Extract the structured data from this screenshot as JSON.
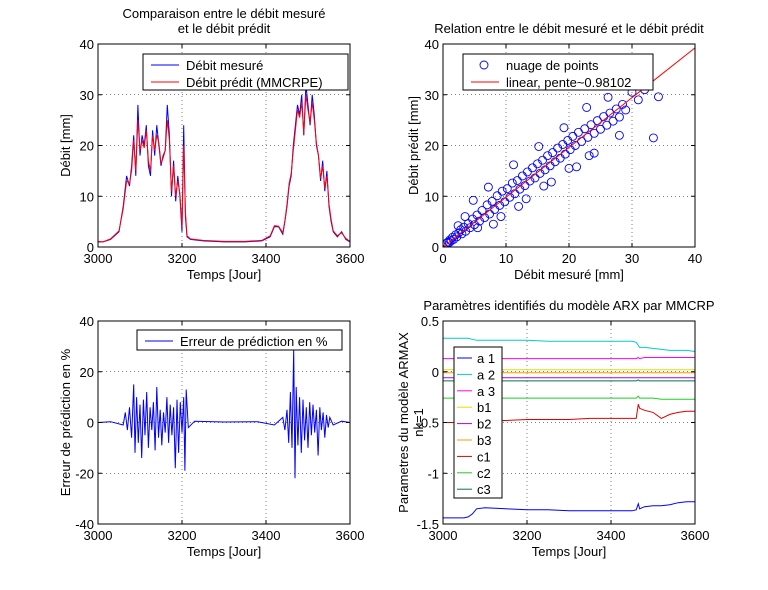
{
  "chart_data": [
    {
      "id": "comparison",
      "type": "line",
      "title": [
        "Comparaison entre le débit mesuré",
        "et le débit prédit"
      ],
      "xlabel": "Temps      [Jour]",
      "ylabel": "Débit [mm]",
      "xlim": [
        3000,
        3600
      ],
      "ylim": [
        0,
        40
      ],
      "xticks": [
        3000,
        3200,
        3400,
        3600
      ],
      "yticks": [
        0,
        10,
        20,
        30,
        40
      ],
      "legend": "top-right",
      "series": [
        {
          "name": "Débit mesuré",
          "color": "#0000ff",
          "x": [
            3000,
            3012,
            3030,
            3050,
            3060,
            3068,
            3075,
            3080,
            3085,
            3090,
            3095,
            3100,
            3105,
            3110,
            3115,
            3120,
            3125,
            3130,
            3135,
            3140,
            3145,
            3150,
            3155,
            3160,
            3165,
            3170,
            3175,
            3180,
            3185,
            3190,
            3195,
            3200,
            3204,
            3208,
            3212,
            3220,
            3250,
            3300,
            3350,
            3390,
            3410,
            3420,
            3430,
            3440,
            3445,
            3450,
            3455,
            3460,
            3465,
            3470,
            3475,
            3480,
            3485,
            3490,
            3495,
            3500,
            3505,
            3510,
            3515,
            3520,
            3525,
            3530,
            3535,
            3540,
            3545,
            3550,
            3555,
            3560,
            3570,
            3580,
            3590,
            3600
          ],
          "values": [
            1,
            1,
            1.5,
            3,
            8,
            14,
            12,
            16,
            22,
            14,
            28,
            18,
            22,
            20,
            24,
            16,
            14,
            23,
            18,
            24,
            20,
            16,
            18,
            19,
            28,
            22,
            10,
            17,
            9,
            14,
            10,
            3,
            24,
            6,
            2,
            1.5,
            1.2,
            1,
            1,
            1.2,
            2,
            4,
            4,
            2.5,
            5,
            8,
            12,
            14,
            20,
            24,
            28,
            26,
            30,
            22,
            32,
            28,
            24,
            30,
            26,
            20,
            18,
            13,
            17,
            11,
            15,
            8,
            5,
            3,
            2,
            3,
            1.5,
            1
          ]
        },
        {
          "name": "Débit prédit (MMCRPE)",
          "color": "#ff0000",
          "x": [
            3000,
            3012,
            3030,
            3050,
            3060,
            3068,
            3075,
            3080,
            3085,
            3090,
            3095,
            3100,
            3105,
            3110,
            3115,
            3120,
            3125,
            3130,
            3135,
            3140,
            3145,
            3150,
            3155,
            3160,
            3165,
            3170,
            3175,
            3180,
            3185,
            3190,
            3195,
            3200,
            3204,
            3208,
            3212,
            3220,
            3250,
            3300,
            3350,
            3390,
            3410,
            3420,
            3430,
            3440,
            3445,
            3450,
            3455,
            3460,
            3465,
            3470,
            3475,
            3480,
            3485,
            3490,
            3495,
            3500,
            3505,
            3510,
            3515,
            3520,
            3525,
            3530,
            3535,
            3540,
            3545,
            3550,
            3555,
            3560,
            3570,
            3580,
            3590,
            3600
          ],
          "values": [
            1.1,
            1,
            1.6,
            3.2,
            7.5,
            13,
            12.5,
            15,
            21,
            15,
            25,
            19,
            21,
            19.5,
            23,
            17,
            15,
            22,
            19,
            22,
            20.5,
            16.5,
            17.5,
            19,
            25,
            21,
            11,
            16,
            10,
            13,
            10.5,
            4,
            20,
            7,
            2.2,
            1.6,
            1.3,
            1.1,
            1.1,
            1.3,
            2.2,
            4.2,
            4.1,
            2.8,
            5.2,
            8.5,
            12.5,
            14.5,
            19,
            23,
            27,
            25.5,
            28.5,
            22.5,
            30,
            27,
            24.5,
            28.5,
            25,
            20.5,
            18,
            13.5,
            16,
            11.5,
            14,
            8.5,
            5.5,
            3.2,
            2.2,
            2.8,
            1.7,
            1.1
          ]
        }
      ]
    },
    {
      "id": "relation",
      "type": "scatter",
      "title": [
        "Relation entre le débit mesuré et le débit prédit"
      ],
      "xlabel": "Débit mesuré [mm]",
      "ylabel": "Débit prédit [mm]",
      "xlim": [
        0,
        40
      ],
      "ylim": [
        0,
        40
      ],
      "xticks": [
        0,
        10,
        20,
        30,
        40
      ],
      "yticks": [
        0,
        10,
        20,
        30,
        40
      ],
      "legend": "top-right",
      "series": [
        {
          "name": "nuage de points",
          "color": "#0000ff",
          "marker": "circle",
          "x": [
            0.6,
            0.8,
            1.0,
            1.1,
            1.3,
            1.5,
            1.7,
            2.0,
            2.2,
            2.5,
            2.8,
            3.0,
            3.3,
            3.6,
            4.0,
            4.3,
            4.7,
            5.0,
            5.4,
            5.8,
            6.2,
            6.6,
            7.0,
            7.4,
            7.8,
            8.2,
            8.6,
            9.0,
            9.4,
            9.8,
            10.2,
            10.6,
            11.0,
            11.4,
            11.8,
            12.2,
            12.6,
            13.0,
            13.4,
            13.8,
            14.2,
            14.6,
            15.0,
            15.4,
            15.8,
            16.2,
            16.6,
            17.0,
            17.4,
            17.8,
            18.2,
            18.6,
            19.0,
            19.4,
            19.8,
            20.2,
            20.6,
            21.0,
            21.5,
            22.0,
            22.5,
            23.0,
            23.5,
            24.0,
            24.5,
            25.0,
            25.5,
            26.0,
            26.5,
            27.0,
            27.5,
            28.0,
            28.5,
            29.0,
            30.0,
            31.0,
            32.0,
            33.4,
            34.2,
            3.5,
            5.5,
            7.2,
            9.2,
            11.2,
            13.2,
            15.2,
            17.2,
            19.2,
            21.2,
            23.2,
            2.4,
            4.8,
            8.0,
            12.0,
            16.0,
            20.0,
            24.0,
            28.0,
            26.2,
            22.8
          ],
          "values": [
            0.8,
            1.0,
            0.9,
            1.4,
            1.2,
            1.9,
            1.5,
            2.4,
            2.0,
            2.8,
            3.4,
            2.6,
            3.9,
            3.1,
            4.6,
            3.8,
            5.5,
            4.4,
            6.3,
            5.1,
            7.2,
            5.8,
            8.3,
            6.5,
            9.0,
            7.4,
            10.1,
            8.2,
            11.0,
            8.9,
            11.5,
            9.8,
            12.6,
            10.5,
            13.1,
            11.4,
            14.0,
            12.1,
            14.8,
            13.0,
            15.6,
            13.6,
            16.4,
            14.5,
            17.1,
            15.2,
            18.0,
            16.0,
            18.6,
            16.8,
            19.5,
            17.5,
            20.2,
            18.3,
            21.0,
            19.2,
            21.8,
            20.0,
            22.6,
            20.8,
            23.3,
            21.6,
            24.1,
            22.4,
            24.9,
            23.2,
            25.7,
            24.0,
            26.4,
            24.8,
            27.2,
            25.6,
            28.1,
            27.0,
            30.5,
            29.0,
            31.0,
            21.5,
            29.6,
            6.0,
            3.8,
            11.8,
            6.0,
            16.2,
            9.5,
            19.8,
            12.8,
            23.5,
            15.8,
            18.0,
            4.2,
            9.2,
            4.5,
            8.0,
            12.0,
            15.5,
            18.5,
            22.0,
            29.5,
            27.5
          ]
        },
        {
          "name": "linear, pente~0.98102",
          "color": "#ff0000",
          "x": [
            0,
            40
          ],
          "values": [
            0,
            39.24
          ]
        }
      ]
    },
    {
      "id": "error",
      "type": "line",
      "title": [],
      "xlabel": "Temps      [Jour]",
      "ylabel": "Erreur de prédiction en %",
      "xlim": [
        3000,
        3600
      ],
      "ylim": [
        -40,
        40
      ],
      "xticks": [
        3000,
        3200,
        3400,
        3600
      ],
      "yticks": [
        -40,
        -20,
        0,
        20,
        40
      ],
      "legend": "top-right",
      "series": [
        {
          "name": "Erreur de prédiction en %",
          "color": "#0000ff",
          "x": [
            3000,
            3030,
            3060,
            3065,
            3070,
            3075,
            3080,
            3085,
            3088,
            3092,
            3096,
            3100,
            3104,
            3108,
            3112,
            3116,
            3120,
            3124,
            3128,
            3132,
            3136,
            3140,
            3144,
            3148,
            3152,
            3156,
            3160,
            3164,
            3168,
            3172,
            3176,
            3180,
            3184,
            3188,
            3192,
            3196,
            3200,
            3204,
            3207,
            3210,
            3215,
            3230,
            3300,
            3380,
            3420,
            3440,
            3445,
            3450,
            3454,
            3458,
            3462,
            3466,
            3469,
            3472,
            3476,
            3480,
            3484,
            3488,
            3492,
            3496,
            3500,
            3504,
            3508,
            3512,
            3516,
            3520,
            3524,
            3528,
            3532,
            3536,
            3540,
            3544,
            3548,
            3552,
            3560,
            3580,
            3600
          ],
          "values": [
            0,
            0.3,
            -1,
            4,
            -3,
            6,
            -6,
            15,
            -12,
            10,
            -8,
            7,
            -14,
            9,
            -5,
            12,
            -10,
            6,
            -3,
            8,
            -11,
            14,
            -6,
            5,
            -9,
            4,
            -4,
            10,
            -8,
            7,
            -5,
            6,
            -18,
            9,
            -12,
            8,
            -4,
            10,
            -19,
            13,
            -2,
            0.5,
            0.2,
            0.3,
            -1,
            2,
            -3,
            5,
            -8,
            12,
            -10,
            29,
            -22,
            14,
            -9,
            10,
            -12,
            9,
            -7,
            6,
            -10,
            8,
            -5,
            7,
            -4,
            5,
            -13,
            6,
            -3,
            4,
            -6,
            3,
            -2,
            2,
            -1,
            0.5,
            0
          ]
        }
      ]
    },
    {
      "id": "parameters",
      "type": "line",
      "title": [
        "Paramètres identifiés du modèle ARX par MMCRP"
      ],
      "xlabel": "Temps      [Jour]",
      "ylabel": [
        "Parametres du modèle ARMAX",
        "nk=1"
      ],
      "xlim": [
        3000,
        3600
      ],
      "ylim": [
        -1.5,
        0.5
      ],
      "xticks": [
        3000,
        3200,
        3400,
        3600
      ],
      "yticks": [
        -1.5,
        -1,
        -0.5,
        0,
        0.5
      ],
      "ytick_labels": [
        "-1.5",
        "-1",
        "-0.5",
        "0",
        "0.5"
      ],
      "legend": "left",
      "x": [
        3000,
        3050,
        3060,
        3070,
        3080,
        3100,
        3150,
        3200,
        3250,
        3300,
        3350,
        3400,
        3450,
        3460,
        3465,
        3468,
        3480,
        3500,
        3520,
        3540,
        3560,
        3580,
        3600
      ],
      "series": [
        {
          "name": "a 1",
          "color": "#0000ff",
          "values": [
            -1.44,
            -1.44,
            -1.43,
            -1.4,
            -1.35,
            -1.34,
            -1.35,
            -1.36,
            -1.36,
            -1.37,
            -1.37,
            -1.37,
            -1.37,
            -1.36,
            -1.3,
            -1.35,
            -1.33,
            -1.32,
            -1.32,
            -1.31,
            -1.29,
            -1.28,
            -1.28
          ]
        },
        {
          "name": "a 2",
          "color": "#00cccc",
          "values": [
            0.33,
            0.33,
            0.33,
            0.32,
            0.31,
            0.31,
            0.31,
            0.31,
            0.3,
            0.3,
            0.3,
            0.3,
            0.3,
            0.29,
            0.26,
            0.24,
            0.24,
            0.23,
            0.22,
            0.21,
            0.21,
            0.21,
            0.2
          ]
        },
        {
          "name": "a 3",
          "color": "#ff00ff",
          "values": [
            0.13,
            0.13,
            0.13,
            0.13,
            0.13,
            0.13,
            0.13,
            0.13,
            0.13,
            0.13,
            0.13,
            0.13,
            0.13,
            0.13,
            0.14,
            0.13,
            0.14,
            0.14,
            0.14,
            0.14,
            0.14,
            0.14,
            0.14
          ]
        },
        {
          "name": "b1",
          "color": "#e0e000",
          "values": [
            0.02,
            0.02,
            0.02,
            0.02,
            0.02,
            0.02,
            0.02,
            0.02,
            0.02,
            0.02,
            0.02,
            0.02,
            0.02,
            0.02,
            0.02,
            0.02,
            0.02,
            0.02,
            0.02,
            0.02,
            0.02,
            0.02,
            0.02
          ]
        },
        {
          "name": "b2",
          "color": "#aa00ff",
          "values": [
            -0.06,
            -0.06,
            -0.06,
            -0.06,
            -0.06,
            -0.06,
            -0.06,
            -0.06,
            -0.06,
            -0.06,
            -0.06,
            -0.06,
            -0.06,
            -0.06,
            -0.06,
            -0.06,
            -0.06,
            -0.06,
            -0.06,
            -0.06,
            -0.06,
            -0.06,
            -0.06
          ]
        },
        {
          "name": "b3",
          "color": "#ff9900",
          "values": [
            -0.01,
            -0.01,
            -0.01,
            -0.01,
            -0.01,
            -0.01,
            -0.01,
            -0.01,
            -0.01,
            -0.01,
            -0.01,
            -0.01,
            -0.01,
            -0.01,
            -0.01,
            -0.01,
            -0.01,
            -0.01,
            -0.01,
            -0.01,
            -0.01,
            -0.01,
            -0.01
          ]
        },
        {
          "name": "c1",
          "color": "#dd0000",
          "values": [
            -0.5,
            -0.5,
            -0.5,
            -0.49,
            -0.48,
            -0.48,
            -0.48,
            -0.47,
            -0.47,
            -0.47,
            -0.46,
            -0.46,
            -0.46,
            -0.46,
            -0.32,
            -0.36,
            -0.38,
            -0.4,
            -0.46,
            -0.42,
            -0.4,
            -0.39,
            -0.39
          ]
        },
        {
          "name": "c2",
          "color": "#22cc22",
          "values": [
            -0.26,
            -0.26,
            -0.26,
            -0.26,
            -0.26,
            -0.26,
            -0.26,
            -0.26,
            -0.26,
            -0.26,
            -0.26,
            -0.26,
            -0.26,
            -0.26,
            -0.24,
            -0.26,
            -0.26,
            -0.26,
            -0.27,
            -0.27,
            -0.27,
            -0.27,
            -0.27
          ]
        },
        {
          "name": "c3",
          "color": "#007744",
          "values": [
            -0.09,
            -0.09,
            -0.09,
            -0.09,
            -0.09,
            -0.09,
            -0.09,
            -0.09,
            -0.09,
            -0.09,
            -0.09,
            -0.09,
            -0.09,
            -0.09,
            -0.08,
            -0.09,
            -0.09,
            -0.09,
            -0.09,
            -0.09,
            -0.09,
            -0.09,
            -0.09
          ]
        }
      ]
    }
  ]
}
